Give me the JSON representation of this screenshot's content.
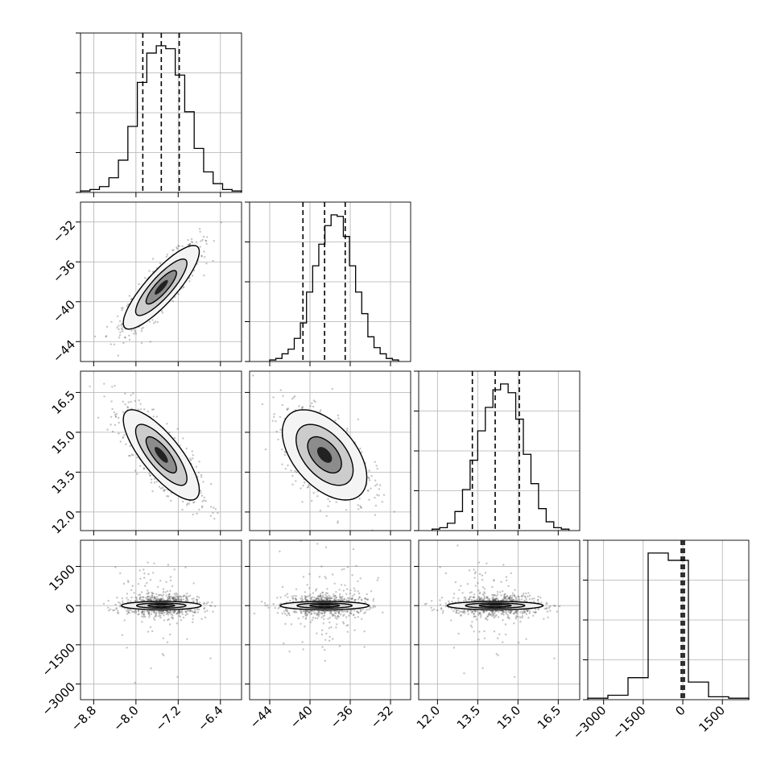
{
  "chart_data": {
    "type": "corner",
    "variables": 4,
    "panels": {
      "hist": [
        {
          "var": 0,
          "quantiles": [
            -7.87,
            -7.52,
            -7.18
          ],
          "counts": [
            1,
            2,
            4,
            10,
            22,
            45,
            75,
            95,
            100,
            98,
            80,
            55,
            30,
            14,
            6,
            2,
            1
          ],
          "range": [
            -9.05,
            -6.0
          ]
        },
        {
          "var": 1,
          "quantiles": [
            -40.7,
            -38.55,
            -36.5
          ],
          "counts": [
            1,
            2,
            5,
            8,
            15,
            25,
            45,
            62,
            76,
            88,
            95,
            94,
            81,
            62,
            45,
            31,
            16,
            9,
            5,
            2,
            1
          ],
          "range": [
            -44.0,
            -31.2
          ]
        },
        {
          "var": 2,
          "quantiles": [
            13.3,
            14.15,
            15.05
          ],
          "counts": [
            1,
            2,
            5,
            13,
            28,
            48,
            68,
            84,
            96,
            100,
            94,
            76,
            52,
            32,
            15,
            6,
            2,
            1
          ],
          "range": [
            11.8,
            16.9
          ]
        },
        {
          "var": 3,
          "quantiles": [
            -60,
            0,
            60
          ],
          "counts": [
            1,
            3,
            15,
            100,
            95,
            12,
            2,
            1
          ],
          "range": [
            -3600,
            2500
          ]
        }
      ],
      "scatter2d": [
        {
          "x_var": 0,
          "y_var": 1,
          "center": [
            -7.52,
            -38.55
          ],
          "sx": 0.36,
          "sy": 2.1,
          "rho": 0.85
        },
        {
          "x_var": 0,
          "y_var": 2,
          "center": [
            -7.52,
            14.15
          ],
          "sx": 0.36,
          "sy": 0.85,
          "rho": -0.78
        },
        {
          "x_var": 1,
          "y_var": 2,
          "center": [
            -38.55,
            14.15
          ],
          "sx": 2.1,
          "sy": 0.85,
          "rho": -0.5
        },
        {
          "x_var": 0,
          "y_var": 3,
          "center": [
            -7.52,
            0
          ],
          "sx": 0.36,
          "sy": 200,
          "rho": 0
        },
        {
          "x_var": 1,
          "y_var": 3,
          "center": [
            -38.55,
            0
          ],
          "sx": 2.1,
          "sy": 200,
          "rho": 0
        },
        {
          "x_var": 2,
          "y_var": 3,
          "center": [
            14.15,
            0
          ],
          "sx": 0.85,
          "sy": 200,
          "rho": 0
        }
      ]
    },
    "axes": [
      {
        "var": 0,
        "range": [
          -9.05,
          -6.0
        ],
        "ticks": [
          -8.8,
          -8.0,
          -7.2,
          -6.4
        ],
        "tick_labels": [
          "−8.8",
          "−8.0",
          "−7.2",
          "−6.4"
        ]
      },
      {
        "var": 1,
        "range": [
          -46.0,
          -30.0
        ],
        "ticks": [
          -44,
          -40,
          -36,
          -32
        ],
        "tick_labels": [
          "−44",
          "−40",
          "−36",
          "−32"
        ]
      },
      {
        "var": 2,
        "range": [
          11.3,
          17.3
        ],
        "ticks": [
          12.0,
          13.5,
          15.0,
          16.5
        ],
        "tick_labels": [
          "12.0",
          "13.5",
          "15.0",
          "16.5"
        ]
      },
      {
        "var": 3,
        "range": [
          -3600,
          2500
        ],
        "ticks": [
          -3000,
          -1500,
          0,
          1500
        ],
        "tick_labels": [
          "−3000",
          "−1500",
          "0",
          "1500"
        ]
      }
    ],
    "grid": true,
    "xlabel": "",
    "ylabel": ""
  }
}
